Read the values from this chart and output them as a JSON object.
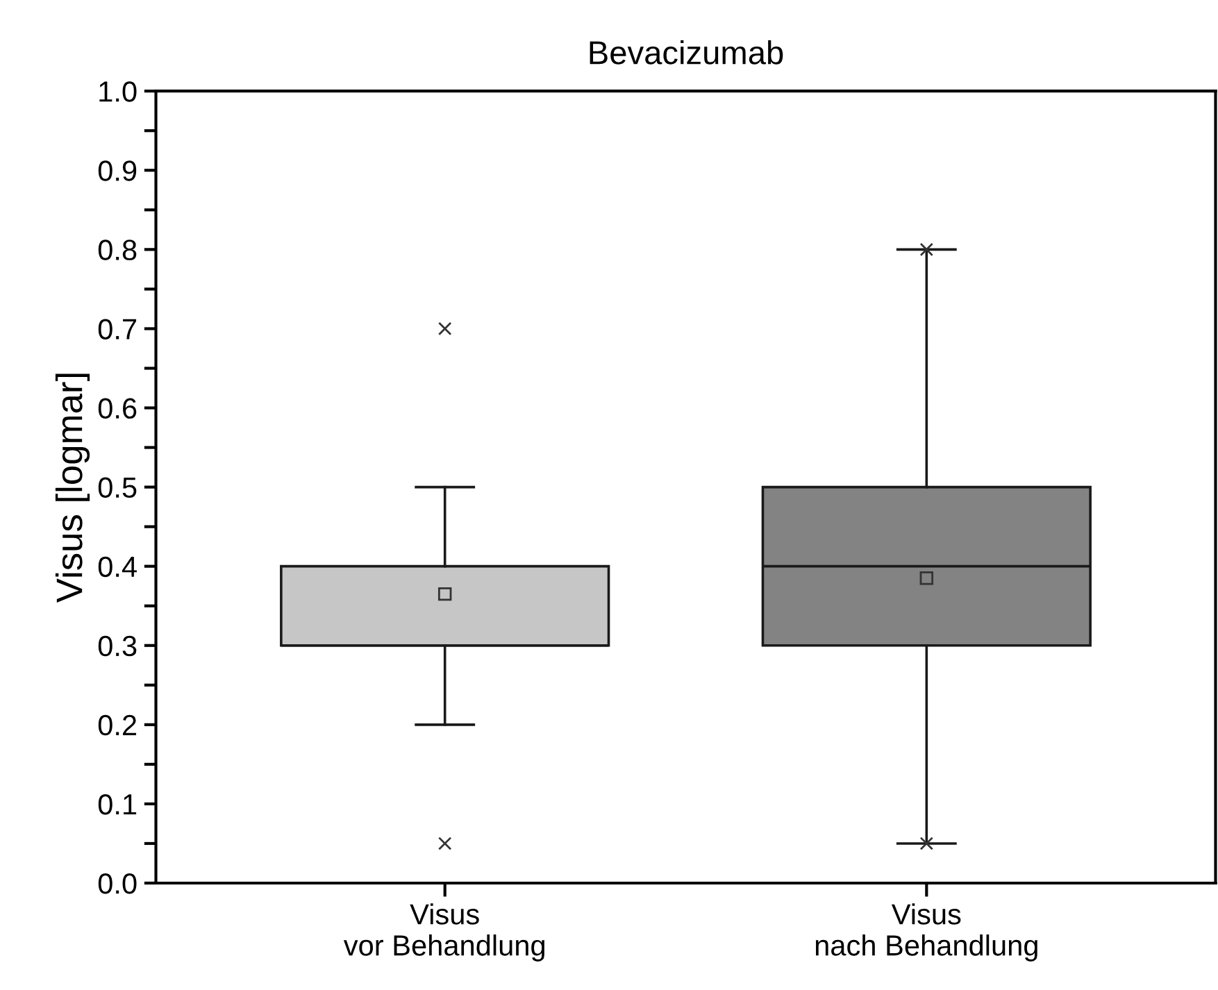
{
  "chart_data": {
    "type": "box",
    "title": "Bevacizumab",
    "ylabel": "Visus [logmar]",
    "categories": [
      "Visus\nvor Behandlung",
      "Visus\nnach Behandlung"
    ],
    "boxes": [
      {
        "low": 0.2,
        "q1": 0.3,
        "median": 0.3,
        "q3": 0.4,
        "high": 0.5,
        "mean": 0.365,
        "outliers": [
          0.7,
          0.05
        ]
      },
      {
        "low": 0.05,
        "q1": 0.3,
        "median": 0.4,
        "q3": 0.5,
        "high": 0.8,
        "mean": 0.385,
        "outliers": [
          0.8,
          0.05
        ]
      }
    ],
    "colors": [
      "#c6c6c6",
      "#838383"
    ],
    "ylim": [
      0.0,
      1.0
    ],
    "yticks": [
      {
        "value": 0,
        "label": "0.0"
      },
      {
        "value": 0.05,
        "label": null
      },
      0.1,
      {
        "value": 0.15,
        "label": null
      },
      0.2,
      {
        "value": 0.25,
        "label": null
      },
      0.3,
      {
        "value": 0.35,
        "label": null
      },
      0.4,
      {
        "value": 0.45,
        "label": null
      },
      0.5,
      {
        "value": 0.55,
        "label": null
      },
      0.6,
      {
        "value": 0.65,
        "label": null
      },
      0.7,
      {
        "value": 0.75,
        "label": null
      },
      0.8,
      {
        "value": 0.85,
        "label": null
      },
      0.9,
      {
        "value": 0.95,
        "label": null
      },
      {
        "value": 1,
        "label": "1.0"
      }
    ],
    "grid": false,
    "legend": false
  }
}
